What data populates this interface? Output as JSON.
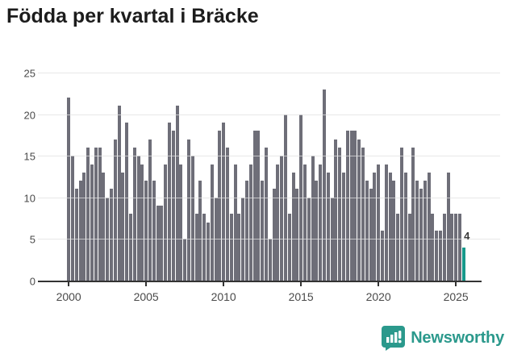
{
  "title": "Födda per kvartal i Bräcke",
  "colors": {
    "bar": "#6e6e78",
    "highlight": "#17998b",
    "axis": "#333333",
    "grid": "#e0e0e0",
    "title_text": "#1c1c1c",
    "tick_text": "#4a4a4a",
    "logo_teal": "#2b998c"
  },
  "chart_data": {
    "type": "bar",
    "title": "Födda per kvartal i Bräcke",
    "x_start": "2000-Q1",
    "x_end": "2025-Q3",
    "x_unit": "quarter",
    "ylim": [
      0,
      25
    ],
    "grid": true,
    "legend_position": "none",
    "yticks": [
      "0",
      "5",
      "10",
      "15",
      "20",
      "25"
    ],
    "xticks": [
      "2000",
      "2005",
      "2010",
      "2015",
      "2020",
      "2025"
    ],
    "series": [
      {
        "name": "Födda",
        "values": [
          22,
          15,
          11,
          12,
          13,
          16,
          14,
          16,
          16,
          13,
          10,
          11,
          17,
          21,
          13,
          19,
          8,
          16,
          15,
          14,
          12,
          17,
          12,
          9,
          9,
          14,
          19,
          18,
          21,
          14,
          5,
          17,
          15,
          8,
          12,
          8,
          7,
          14,
          10,
          18,
          19,
          16,
          8,
          14,
          8,
          10,
          12,
          14,
          18,
          18,
          12,
          16,
          5,
          11,
          14,
          15,
          20,
          8,
          13,
          11,
          20,
          14,
          10,
          15,
          12,
          14,
          23,
          13,
          10,
          17,
          16,
          13,
          18,
          18,
          18,
          17,
          16,
          12,
          11,
          13,
          14,
          6,
          14,
          13,
          12,
          8,
          16,
          13,
          8,
          16,
          12,
          11,
          12,
          13,
          8,
          6,
          6,
          8,
          13,
          8,
          8,
          8,
          4
        ]
      }
    ],
    "highlight_last_bar": {
      "value": 4,
      "label": "4",
      "color": "#17998b"
    }
  },
  "annotation": {
    "last_value_label": "4"
  },
  "logo": {
    "text": "Newsworthy",
    "icon": "newsworthy-pin-icon"
  }
}
